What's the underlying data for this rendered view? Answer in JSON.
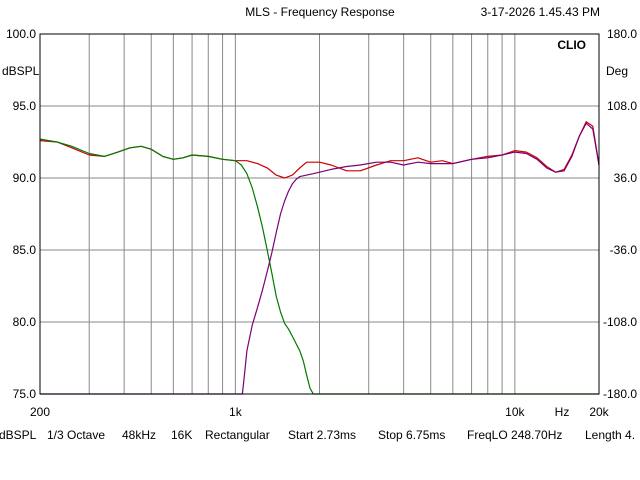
{
  "header": {
    "title": "MLS - Frequency Response",
    "timestamp": "3-17-2026 1.45.43 PM",
    "brand": "CLIO"
  },
  "footer": {
    "items": [
      "dBSPL",
      "1/3 Octave",
      "48kHz",
      "16K",
      "Rectangular",
      "Start 2.73ms",
      "Stop 6.75ms",
      "FreqLO 248.70Hz",
      "Length 4."
    ]
  },
  "colors": {
    "background": "#ffffff",
    "grid": "#8a8a8a",
    "frame": "#000000",
    "red_trace": "#cc0000",
    "green_trace": "#007a00",
    "purple_trace": "#7a007a"
  },
  "chart_data": {
    "type": "line",
    "title": "MLS - Frequency Response",
    "x_scale": "log",
    "xlim": [
      200,
      20000
    ],
    "x_ticks": [
      200,
      1000,
      10000,
      20000
    ],
    "x_tick_labels": [
      "200",
      "1k",
      "10k",
      "20k"
    ],
    "x_unit_label": "Hz",
    "ylim": [
      75,
      100
    ],
    "y_ticks": [
      75,
      80,
      85,
      90,
      95,
      100
    ],
    "y_tick_labels": [
      "75.0",
      "80.0",
      "85.0",
      "90.0",
      "95.0",
      "100.0"
    ],
    "ylabel": "dBSPL",
    "y2lim": [
      -180,
      180
    ],
    "y2_ticks": [
      -180,
      -108,
      -36,
      36,
      108,
      180
    ],
    "y2_tick_labels": [
      "-180.0",
      "-108.0",
      "-36.0",
      "36.0",
      "108.0",
      "180.0"
    ],
    "y2label": "Deg",
    "grid": true,
    "series": [
      {
        "color": "#cc0000",
        "x": [
          200,
          230,
          260,
          300,
          340,
          380,
          420,
          460,
          500,
          550,
          600,
          650,
          700,
          800,
          900,
          1000,
          1100,
          1200,
          1300,
          1400,
          1500,
          1600,
          1700,
          1800,
          2000,
          2200,
          2500,
          2800,
          3200,
          3600,
          4000,
          4500,
          5000,
          5500,
          6000,
          7000,
          8000,
          9000,
          10000,
          11000,
          12000,
          13000,
          14000,
          15000,
          16000,
          17000,
          18000,
          19000,
          20000
        ],
        "y": [
          92.6,
          92.5,
          92.1,
          91.6,
          91.5,
          91.8,
          92.1,
          92.2,
          92.0,
          91.5,
          91.3,
          91.4,
          91.6,
          91.5,
          91.3,
          91.2,
          91.2,
          91.0,
          90.7,
          90.2,
          90.0,
          90.2,
          90.7,
          91.1,
          91.1,
          90.9,
          90.5,
          90.5,
          90.9,
          91.2,
          91.2,
          91.4,
          91.1,
          91.2,
          91.0,
          91.3,
          91.5,
          91.6,
          91.9,
          91.8,
          91.4,
          90.8,
          90.4,
          90.6,
          91.6,
          92.9,
          93.9,
          93.6,
          90.9
        ]
      },
      {
        "color": "#007a00",
        "x": [
          200,
          230,
          260,
          300,
          340,
          380,
          420,
          460,
          500,
          550,
          600,
          650,
          700,
          800,
          900,
          1000,
          1050,
          1100,
          1150,
          1200,
          1250,
          1300,
          1350,
          1400,
          1450,
          1500,
          1550,
          1600,
          1650,
          1700,
          1750,
          1800,
          1850,
          1900,
          1950,
          2000,
          2500,
          5000,
          10000,
          20000
        ],
        "y": [
          92.7,
          92.5,
          92.2,
          91.7,
          91.5,
          91.8,
          92.1,
          92.2,
          92.0,
          91.5,
          91.3,
          91.4,
          91.6,
          91.5,
          91.3,
          91.2,
          90.9,
          90.3,
          89.3,
          88.0,
          86.6,
          85.0,
          83.4,
          81.8,
          80.7,
          79.9,
          79.5,
          79.0,
          78.5,
          78.0,
          77.3,
          76.3,
          75.4,
          75.0,
          75.0,
          75.0,
          75.0,
          75.0,
          75.0,
          75.0
        ]
      },
      {
        "color": "#7a007a",
        "x": [
          200,
          500,
          1000,
          1060,
          1080,
          1100,
          1150,
          1200,
          1250,
          1300,
          1350,
          1400,
          1450,
          1500,
          1550,
          1600,
          1650,
          1700,
          1800,
          1900,
          2000,
          2200,
          2500,
          2800,
          3200,
          3600,
          4000,
          4500,
          5000,
          5500,
          6000,
          7000,
          8000,
          9000,
          10000,
          11000,
          12000,
          13000,
          14000,
          15000,
          16000,
          17000,
          18000,
          19000,
          20000
        ],
        "y": [
          75.0,
          75.0,
          75.0,
          75.0,
          76.5,
          78.0,
          79.8,
          81.0,
          82.2,
          83.5,
          84.8,
          86.2,
          87.5,
          88.4,
          89.1,
          89.6,
          89.9,
          90.1,
          90.2,
          90.3,
          90.4,
          90.6,
          90.8,
          90.9,
          91.1,
          91.1,
          90.9,
          91.1,
          91.0,
          91.0,
          91.0,
          91.3,
          91.4,
          91.6,
          91.8,
          91.7,
          91.3,
          90.7,
          90.4,
          90.5,
          91.5,
          92.9,
          93.8,
          93.4,
          90.9
        ]
      }
    ]
  }
}
